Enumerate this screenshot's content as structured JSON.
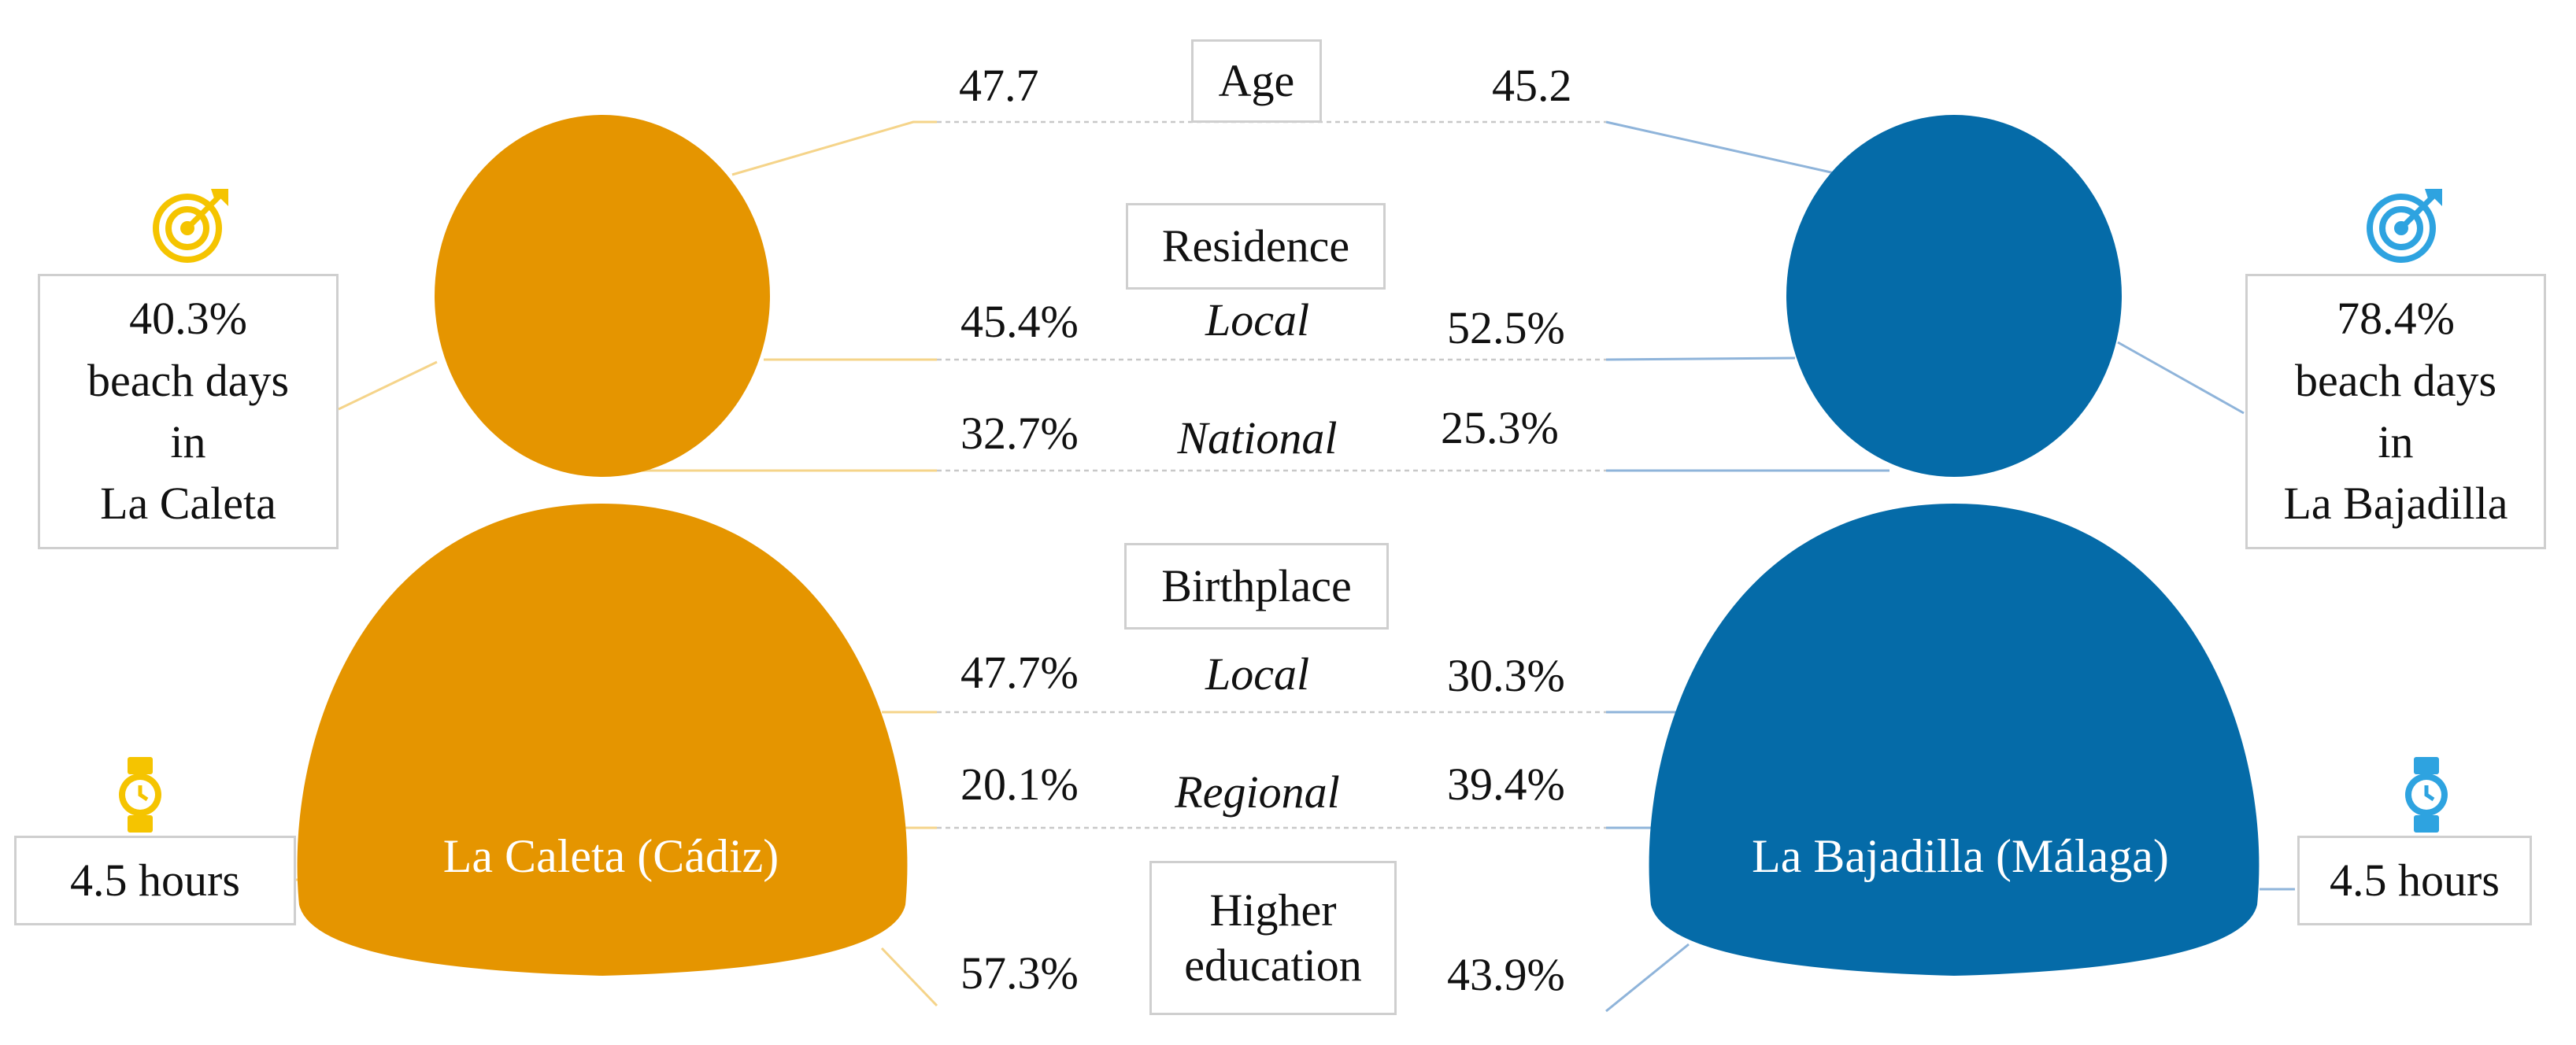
{
  "colors": {
    "caleta": "#E59500",
    "bajadilla": "#056BA8",
    "target_left": "#F5C400",
    "target_right": "#2EA3E0",
    "watch_left": "#F5C400",
    "watch_right": "#2EA3E0",
    "line_left": "#F5D48A",
    "line_right": "#8FB4DA",
    "dashed": "#c8c8c8"
  },
  "left": {
    "name": "La Caleta (Cádiz)",
    "beach_days": [
      "40.3%",
      "beach days",
      "in",
      "La Caleta"
    ],
    "hours": "4.5 hours",
    "target_icon": "target-icon",
    "watch_icon": "watch-icon"
  },
  "right": {
    "name": "La Bajadilla (Málaga)",
    "beach_days": [
      "78.4%",
      "beach days",
      "in",
      "La Bajadilla"
    ],
    "hours": "4.5 hours",
    "target_icon": "target-icon",
    "watch_icon": "watch-icon"
  },
  "age": {
    "label": "Age",
    "left": "47.7",
    "right": "45.2"
  },
  "residence": {
    "label": "Residence",
    "rows": [
      {
        "category": "Local",
        "left": "45.4%",
        "right": "52.5%"
      },
      {
        "category": "National",
        "left": "32.7%",
        "right": "25.3%"
      }
    ]
  },
  "birthplace": {
    "label": "Birthplace",
    "rows": [
      {
        "category": "Local",
        "left": "47.7%",
        "right": "30.3%"
      },
      {
        "category": "Regional",
        "left": "20.1%",
        "right": "39.4%"
      }
    ]
  },
  "education": {
    "label_line1": "Higher",
    "label_line2": "education",
    "left": "57.3%",
    "right": "43.9%"
  }
}
